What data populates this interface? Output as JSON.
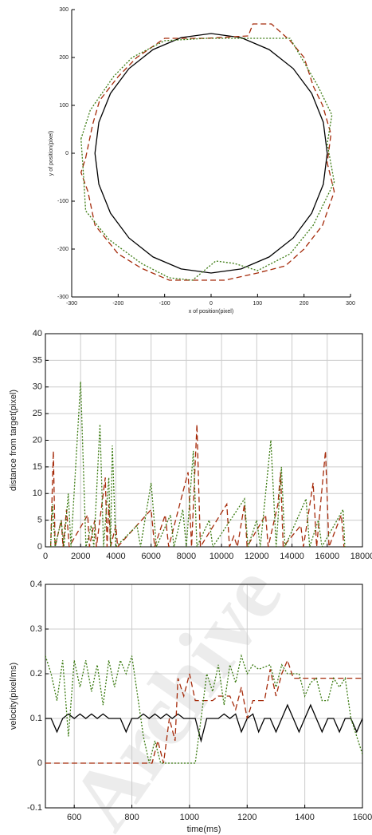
{
  "watermark": "Archive",
  "chart_data": [
    {
      "type": "line",
      "xlabel": "x of position(pixel)",
      "ylabel": "y of position(pixel)",
      "xlim": [
        -300,
        300
      ],
      "ylim": [
        -300,
        300
      ],
      "xticks": [
        -300,
        -200,
        -100,
        0,
        100,
        200,
        300
      ],
      "yticks": [
        -300,
        -200,
        -100,
        0,
        100,
        200,
        300
      ],
      "grid": false,
      "series": [
        {
          "color": "#000000",
          "line_style": "solid",
          "x": [
            250,
            241.5,
            216.5,
            176.8,
            125,
            64.7,
            0,
            -64.7,
            -125,
            -176.8,
            -216.5,
            -241.5,
            -250,
            -241.5,
            -216.5,
            -176.8,
            -125,
            -64.7,
            0,
            64.7,
            125,
            176.8,
            216.5,
            241.5,
            250
          ],
          "values": [
            0,
            64.7,
            125,
            176.8,
            216.5,
            241.5,
            250,
            241.5,
            216.5,
            176.8,
            125,
            64.7,
            0,
            -64.7,
            -125,
            -176.8,
            -216.5,
            -241.5,
            -250,
            -241.5,
            -216.5,
            -176.8,
            -125,
            -64.7,
            0
          ]
        },
        {
          "color": "#a52a0a",
          "line_style": "dashed",
          "x": [
            -270,
            -255,
            -240,
            -200,
            -160,
            -100,
            -10,
            80,
            90,
            130,
            170,
            200,
            220,
            240,
            258,
            250,
            265,
            240,
            200,
            160,
            100,
            30,
            -40,
            -90,
            -150,
            -200,
            -250,
            -265,
            -280,
            -270
          ],
          "values": [
            -10,
            60,
            110,
            160,
            200,
            240,
            240,
            245,
            270,
            270,
            235,
            200,
            140,
            100,
            40,
            -20,
            -80,
            -150,
            -200,
            -235,
            -250,
            -265,
            -265,
            -265,
            -240,
            -210,
            -150,
            -80,
            -40,
            -10
          ]
        },
        {
          "color": "#3a7a10",
          "line_style": "dotted",
          "x": [
            -280,
            -260,
            -210,
            -170,
            -100,
            -10,
            40,
            120,
            170,
            230,
            260,
            250,
            265,
            220,
            170,
            100,
            50,
            10,
            -40,
            -90,
            -150,
            -220,
            -270,
            -275,
            -280
          ],
          "values": [
            30,
            90,
            160,
            200,
            235,
            240,
            240,
            240,
            240,
            140,
            80,
            20,
            -60,
            -150,
            -210,
            -245,
            -230,
            -225,
            -265,
            -260,
            -230,
            -180,
            -120,
            -40,
            30
          ]
        }
      ]
    },
    {
      "type": "line",
      "ylabel": "distance from target(pixel)",
      "xlim": [
        0,
        18000
      ],
      "ylim": [
        0,
        40
      ],
      "xticks": [
        0,
        2000,
        4000,
        6000,
        8000,
        10000,
        12000,
        14000,
        16000,
        18000
      ],
      "yticks": [
        0,
        5,
        10,
        15,
        20,
        25,
        30,
        35,
        40
      ],
      "grid": true,
      "series": [
        {
          "color": "#a52a0a",
          "line_style": "dashed",
          "x": [
            300,
            450,
            550,
            900,
            1000,
            1200,
            1350,
            2400,
            2500,
            2800,
            2900,
            3400,
            3500,
            3600,
            3700,
            4000,
            4100,
            6000,
            6200,
            6800,
            7000,
            8100,
            8300,
            8600,
            8800,
            10300,
            10450,
            10700,
            10900,
            11300,
            11450,
            12500,
            12650,
            13200,
            13350,
            13500,
            14500,
            14650,
            15200,
            15400,
            15900,
            16100,
            16800,
            16950
          ],
          "values": [
            0,
            18,
            0,
            5,
            0,
            7,
            0,
            6,
            0,
            5,
            0,
            13,
            0,
            8,
            0,
            4,
            0,
            7,
            0,
            6,
            0,
            14,
            0,
            23,
            0,
            8,
            0,
            2,
            0,
            8,
            0,
            6,
            0,
            8,
            14,
            0,
            4,
            0,
            12,
            0,
            18,
            0,
            6,
            0
          ]
        },
        {
          "color": "#3a7a10",
          "line_style": "dotted",
          "x": [
            300,
            400,
            550,
            900,
            1050,
            1300,
            1450,
            2000,
            2300,
            2600,
            2750,
            3100,
            3300,
            3600,
            3700,
            3800,
            4000,
            5200,
            5400,
            6000,
            6300,
            7100,
            7300,
            7800,
            8000,
            8400,
            8600,
            9300,
            9500,
            11300,
            11500,
            12000,
            12200,
            12800,
            13100,
            13400,
            13600,
            14800,
            15000,
            15500,
            15700,
            16900,
            17000
          ],
          "values": [
            0,
            8,
            0,
            5,
            0,
            10,
            0,
            31,
            0,
            4,
            0,
            23,
            0,
            13,
            0,
            19,
            0,
            4,
            0,
            12,
            0,
            6,
            0,
            7,
            0,
            18,
            0,
            5,
            0,
            9,
            0,
            5,
            0,
            20,
            0,
            15,
            0,
            9,
            0,
            5,
            0,
            7,
            0
          ]
        }
      ]
    },
    {
      "type": "line",
      "xlabel": "time(ms)",
      "ylabel": "velocity(pixel/ms)",
      "xlim": [
        500,
        1600
      ],
      "ylim": [
        -0.1,
        0.4
      ],
      "xticks": [
        600,
        800,
        1000,
        1200,
        1400,
        1600
      ],
      "yticks": [
        -0.1,
        0,
        0.1,
        0.2,
        0.3,
        0.4
      ],
      "grid": true,
      "series": [
        {
          "color": "#000000",
          "line_style": "solid",
          "x": [
            500,
            520,
            540,
            560,
            580,
            600,
            620,
            640,
            660,
            680,
            700,
            720,
            740,
            760,
            780,
            800,
            820,
            840,
            860,
            880,
            900,
            920,
            940,
            960,
            980,
            1000,
            1020,
            1040,
            1060,
            1080,
            1100,
            1120,
            1140,
            1160,
            1180,
            1200,
            1220,
            1240,
            1260,
            1280,
            1300,
            1320,
            1340,
            1360,
            1380,
            1400,
            1420,
            1440,
            1460,
            1480,
            1500,
            1520,
            1540,
            1560,
            1580,
            1600
          ],
          "values": [
            0.1,
            0.1,
            0.07,
            0.1,
            0.11,
            0.1,
            0.11,
            0.1,
            0.11,
            0.1,
            0.11,
            0.1,
            0.1,
            0.1,
            0.07,
            0.1,
            0.1,
            0.11,
            0.1,
            0.11,
            0.1,
            0.11,
            0.1,
            0.11,
            0.1,
            0.1,
            0.1,
            0.05,
            0.1,
            0.1,
            0.1,
            0.11,
            0.1,
            0.11,
            0.07,
            0.1,
            0.11,
            0.07,
            0.1,
            0.1,
            0.07,
            0.1,
            0.13,
            0.1,
            0.07,
            0.1,
            0.13,
            0.1,
            0.07,
            0.1,
            0.1,
            0.07,
            0.1,
            0.1,
            0.07,
            0.1
          ]
        },
        {
          "color": "#a52a0a",
          "line_style": "dashed",
          "x": [
            500,
            870,
            890,
            910,
            930,
            950,
            960,
            980,
            1000,
            1020,
            1080,
            1100,
            1140,
            1160,
            1180,
            1200,
            1220,
            1260,
            1280,
            1300,
            1320,
            1340,
            1360,
            1600
          ],
          "values": [
            0,
            0,
            0.05,
            0,
            0.1,
            0.05,
            0.19,
            0.15,
            0.2,
            0.14,
            0.14,
            0.15,
            0.15,
            0.12,
            0.17,
            0.1,
            0.14,
            0.14,
            0.21,
            0.15,
            0.2,
            0.23,
            0.19,
            0.19
          ]
        },
        {
          "color": "#3a7a10",
          "line_style": "dotted",
          "x": [
            500,
            520,
            540,
            560,
            580,
            600,
            620,
            640,
            660,
            680,
            700,
            720,
            740,
            760,
            780,
            800,
            820,
            840,
            860,
            880,
            900,
            1020,
            1040,
            1060,
            1080,
            1100,
            1120,
            1140,
            1160,
            1180,
            1200,
            1220,
            1240,
            1280,
            1300,
            1320,
            1340,
            1380,
            1400,
            1420,
            1440,
            1460,
            1480,
            1500,
            1520,
            1540,
            1560,
            1580,
            1600
          ],
          "values": [
            0.24,
            0.2,
            0.14,
            0.23,
            0.06,
            0.23,
            0.17,
            0.23,
            0.16,
            0.22,
            0.13,
            0.23,
            0.17,
            0.23,
            0.2,
            0.24,
            0.15,
            0.06,
            0,
            0.05,
            0,
            0,
            0.1,
            0.2,
            0.16,
            0.22,
            0.13,
            0.22,
            0.18,
            0.24,
            0.2,
            0.22,
            0.21,
            0.22,
            0.17,
            0.22,
            0.2,
            0.2,
            0.15,
            0.18,
            0.19,
            0.14,
            0.14,
            0.19,
            0.17,
            0.19,
            0.1,
            0.06,
            0.02
          ]
        }
      ]
    }
  ]
}
